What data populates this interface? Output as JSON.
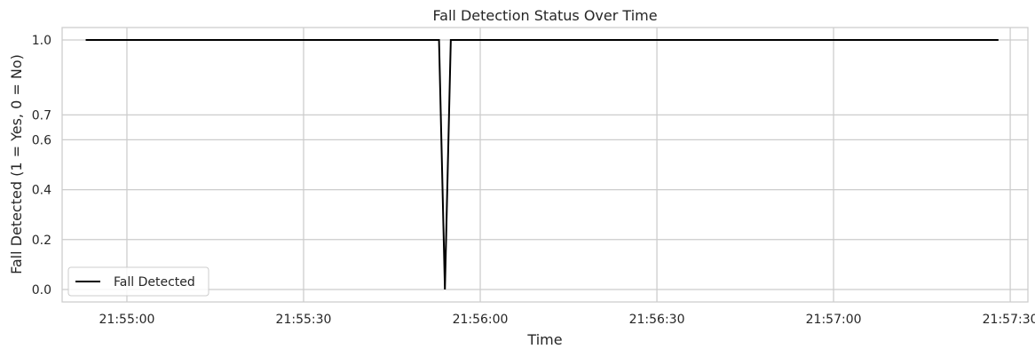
{
  "chart_data": {
    "type": "line",
    "title": "Fall Detection Status Over Time",
    "xlabel": "Time",
    "ylabel": "Fall Detected (1 = Yes, 0 = No)",
    "x_ticks": [
      "21:55:00",
      "21:55:30",
      "21:56:00",
      "21:56:30",
      "21:57:00",
      "21:57:30"
    ],
    "y_ticks": [
      "0.0",
      "0.2",
      "0.4",
      "0.6",
      "0.7",
      "1.0"
    ],
    "xlim": [
      "21:54:49",
      "21:57:33"
    ],
    "ylim": [
      -0.05,
      1.05
    ],
    "grid": true,
    "legend_position": "lower-left",
    "series": [
      {
        "name": "Fall Detected",
        "color": "#000000",
        "x": [
          "21:54:53",
          "21:55:53",
          "21:55:54",
          "21:55:55",
          "21:57:28"
        ],
        "y": [
          1,
          1,
          0,
          1,
          1
        ]
      }
    ]
  }
}
